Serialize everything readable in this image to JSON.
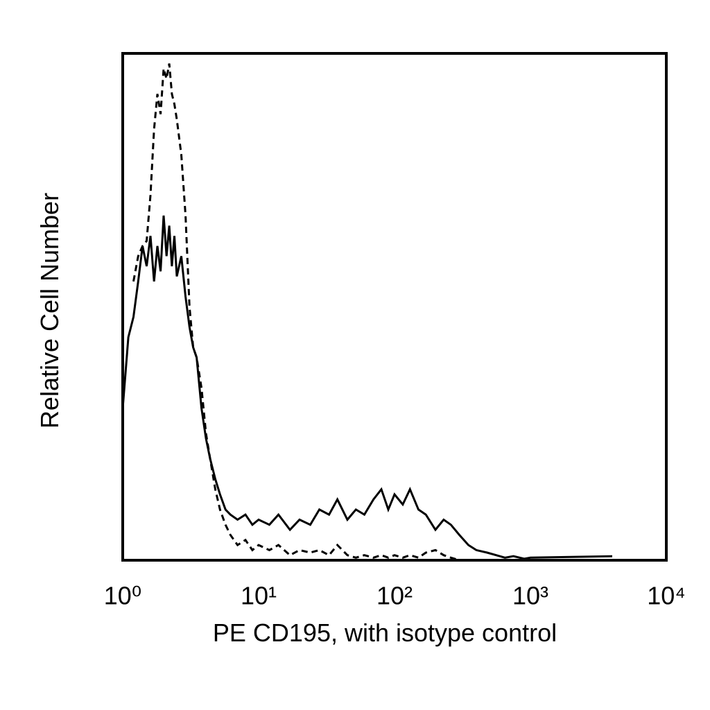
{
  "chart_data": {
    "type": "line",
    "x_label": "PE CD195, with isotype control",
    "y_label": "Relative Cell Number",
    "xscale": "log",
    "xlim": [
      1,
      10000
    ],
    "ylim": [
      0,
      100
    ],
    "xticks": [
      {
        "value": 1,
        "label": "10⁰"
      },
      {
        "value": 10,
        "label": "10¹"
      },
      {
        "value": 100,
        "label": "10²"
      },
      {
        "value": 1000,
        "label": "10³"
      },
      {
        "value": 10000,
        "label": "10⁴"
      }
    ],
    "x": [
      1,
      1.1,
      1.2,
      1.3,
      1.4,
      1.5,
      1.6,
      1.7,
      1.8,
      1.9,
      2,
      2.1,
      2.2,
      2.3,
      2.4,
      2.5,
      2.7,
      2.9,
      3.1,
      3.3,
      3.5,
      3.8,
      4.1,
      4.4,
      4.8,
      5.2,
      5.7,
      6.2,
      7,
      8,
      9,
      10,
      12,
      14,
      17,
      20,
      24,
      28,
      33,
      38,
      45,
      52,
      60,
      70,
      80,
      90,
      100,
      115,
      130,
      150,
      170,
      200,
      230,
      260,
      300,
      350,
      400,
      480,
      560,
      650,
      750,
      900,
      1000,
      4000
    ],
    "series": [
      {
        "color": "#000000",
        "dashed": false,
        "values": [
          30,
          44,
          48,
          55,
          62,
          58,
          64,
          55,
          62,
          57,
          68,
          60,
          66,
          58,
          64,
          56,
          60,
          52,
          46,
          42,
          40,
          30,
          24,
          20,
          16,
          13,
          10,
          9,
          8,
          9,
          7,
          8,
          7,
          9,
          6,
          8,
          7,
          10,
          9,
          12,
          8,
          10,
          9,
          12,
          14,
          10,
          13,
          11,
          14,
          10,
          9,
          6,
          8,
          7,
          5,
          3,
          2,
          1.5,
          1,
          0.5,
          0.8,
          0.3,
          0.5,
          0.8
        ]
      },
      {
        "color": "#000000",
        "dashed": true,
        "values": [
          null,
          null,
          55,
          60,
          62,
          63,
          72,
          85,
          92,
          88,
          97,
          95,
          98,
          92,
          90,
          87,
          80,
          68,
          50,
          42,
          40,
          34,
          25,
          20,
          14,
          10,
          7,
          5,
          3,
          4,
          2,
          3,
          2,
          3,
          1,
          2,
          1.5,
          2,
          1,
          3,
          1,
          0.5,
          1,
          0.5,
          1,
          0.5,
          1,
          0.5,
          1,
          0.5,
          1.5,
          2,
          1,
          0.5,
          0,
          null,
          null,
          null,
          null,
          null,
          null,
          null,
          null,
          null
        ]
      }
    ]
  }
}
